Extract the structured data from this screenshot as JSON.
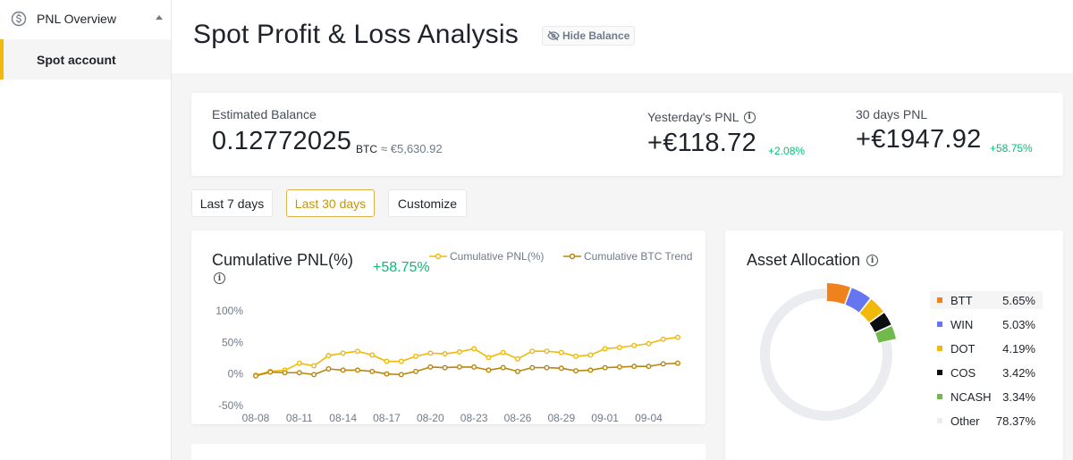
{
  "sidebar": {
    "section_label": "PNL Overview",
    "section_icon": "dollar-coin-icon",
    "items": [
      {
        "label": "Spot account",
        "active": true
      }
    ]
  },
  "header": {
    "title": "Spot Profit & Loss Analysis",
    "hide_balance_label": "Hide Balance",
    "hide_balance_icon": "eye-off-icon"
  },
  "balance": {
    "estimated_label": "Estimated Balance",
    "estimated_value": "0.12772025",
    "estimated_unit": "BTC",
    "estimated_fiat": "≈ €5,630.92",
    "yesterday_label": "Yesterday's PNL",
    "yesterday_value": "+€118.72",
    "yesterday_pct": "+2.08%",
    "days30_label": "30 days PNL",
    "days30_value": "+€1947.92",
    "days30_pct": "+58.75%"
  },
  "range_buttons": [
    {
      "label": "Last 7 days",
      "active": false
    },
    {
      "label": "Last 30 days",
      "active": true
    },
    {
      "label": "Customize",
      "active": false
    }
  ],
  "cumulative": {
    "title": "Cumulative PNL(%)",
    "value": "+58.75%",
    "legend": [
      "Cumulative PNL(%)",
      "Cumulative BTC Trend"
    ]
  },
  "allocation": {
    "title": "Asset Allocation",
    "items": [
      {
        "name": "BTT",
        "pct": "5.65%",
        "value": 5.65,
        "color": "#f0821e"
      },
      {
        "name": "WIN",
        "pct": "5.03%",
        "value": 5.03,
        "color": "#6675f0"
      },
      {
        "name": "DOT",
        "pct": "4.19%",
        "value": 4.19,
        "color": "#f0b90b"
      },
      {
        "name": "COS",
        "pct": "3.42%",
        "value": 3.42,
        "color": "#0b0e11"
      },
      {
        "name": "NCASH",
        "pct": "3.34%",
        "value": 3.34,
        "color": "#6fba4b"
      },
      {
        "name": "Other",
        "pct": "78.37%",
        "value": 78.37,
        "color": "#eaecef"
      }
    ]
  },
  "colors": {
    "accent": "#f0b90b",
    "positive": "#02c076",
    "btc_trend": "#b8860b"
  },
  "chart_data": {
    "type": "line",
    "x": [
      "08-08",
      "08-09",
      "08-10",
      "08-11",
      "08-12",
      "08-13",
      "08-14",
      "08-15",
      "08-16",
      "08-17",
      "08-18",
      "08-19",
      "08-20",
      "08-21",
      "08-22",
      "08-23",
      "08-24",
      "08-25",
      "08-26",
      "08-27",
      "08-28",
      "08-29",
      "08-30",
      "08-31",
      "09-01",
      "09-02",
      "09-03",
      "09-04",
      "09-05",
      "09-06"
    ],
    "x_tick_labels": [
      "08-08",
      "08-11",
      "08-14",
      "08-17",
      "08-20",
      "08-23",
      "08-26",
      "08-29",
      "09-01",
      "09-04"
    ],
    "series": [
      {
        "name": "Cumulative PNL(%)",
        "color": "#f0b90b",
        "values": [
          -2,
          4,
          6,
          17,
          13,
          29,
          33,
          36,
          30,
          20,
          20,
          28,
          33,
          32,
          35,
          40,
          26,
          34,
          24,
          36,
          36,
          34,
          28,
          30,
          40,
          42,
          45,
          48,
          55,
          58
        ]
      },
      {
        "name": "Cumulative BTC Trend",
        "color": "#b8860b",
        "values": [
          -3,
          3,
          2,
          2,
          -1,
          8,
          6,
          6,
          4,
          0,
          -1,
          4,
          11,
          10,
          11,
          11,
          6,
          10,
          4,
          10,
          10,
          9,
          5,
          6,
          10,
          11,
          12,
          12,
          16,
          17
        ]
      }
    ],
    "ylim": [
      -50,
      100
    ],
    "y_ticks": [
      100,
      50,
      0,
      -50
    ],
    "y_tick_labels": [
      "100%",
      "50%",
      "0%",
      "-50%"
    ],
    "grid": false,
    "legend": "top-right"
  }
}
